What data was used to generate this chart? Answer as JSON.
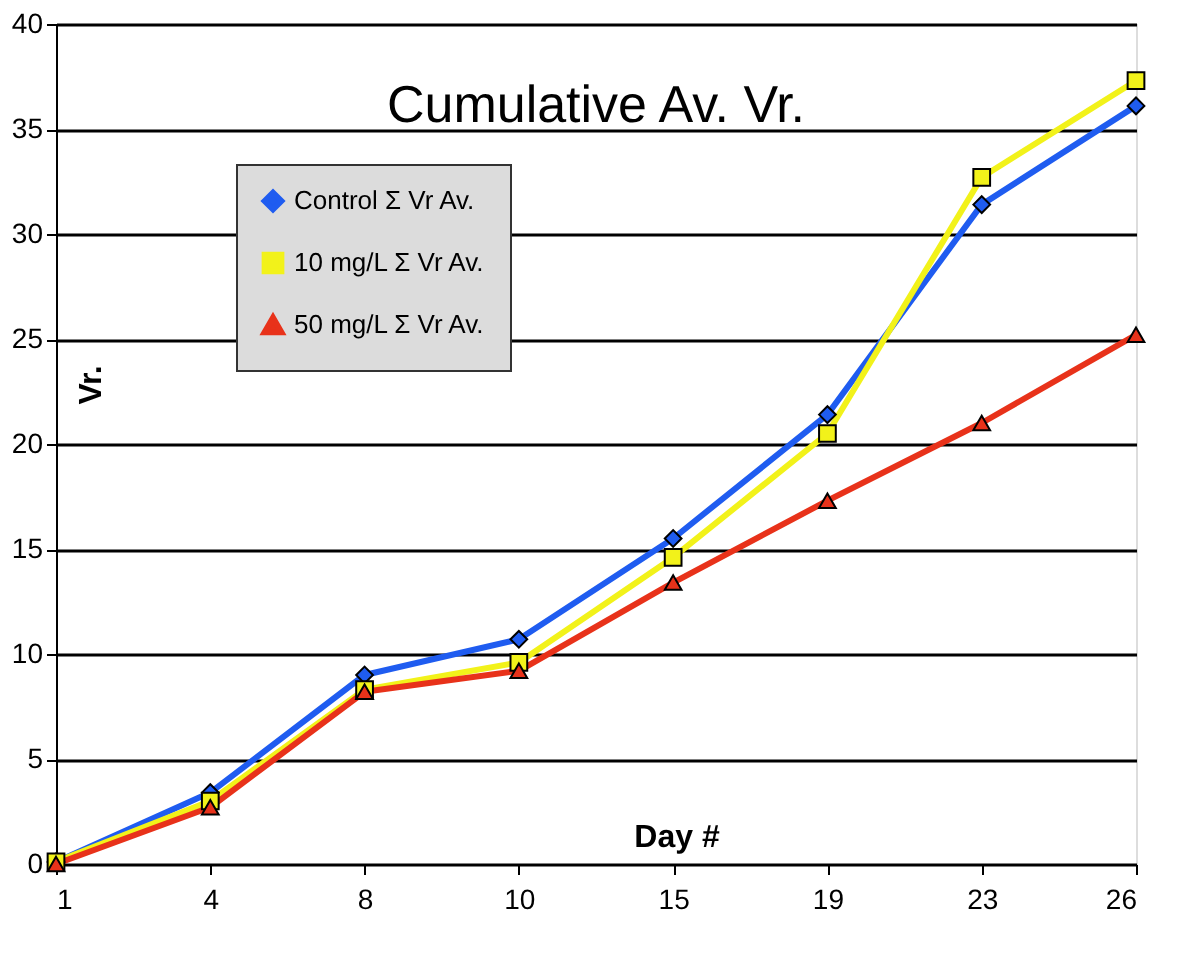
{
  "chart_data": {
    "type": "line",
    "title": "Cumulative Av. Vr.",
    "xlabel": "Day #",
    "ylabel": "Vr.",
    "categories": [
      "1",
      "4",
      "8",
      "10",
      "15",
      "19",
      "23",
      "26"
    ],
    "series": [
      {
        "name": "Control Σ Vr Av.",
        "color": "#1f5cf0",
        "marker": "diamond",
        "values": [
          0.1,
          3.4,
          9.0,
          10.7,
          15.5,
          21.4,
          31.4,
          36.1
        ]
      },
      {
        "name": "10 mg/L Σ Vr Av.",
        "color": "#f2f21a",
        "marker": "square",
        "values": [
          0.1,
          3.0,
          8.3,
          9.6,
          14.6,
          20.5,
          32.7,
          37.3
        ]
      },
      {
        "name": "50 mg/L Σ Vr Av.",
        "color": "#e8321a",
        "marker": "triangle",
        "values": [
          0.0,
          2.7,
          8.2,
          9.2,
          13.4,
          17.3,
          21.0,
          25.2
        ]
      }
    ],
    "ylim": [
      0,
      40
    ],
    "yticks": [
      0,
      5,
      10,
      15,
      20,
      25,
      30,
      35,
      40
    ],
    "grid": "y",
    "legend": "top left",
    "line_style": "solid"
  }
}
